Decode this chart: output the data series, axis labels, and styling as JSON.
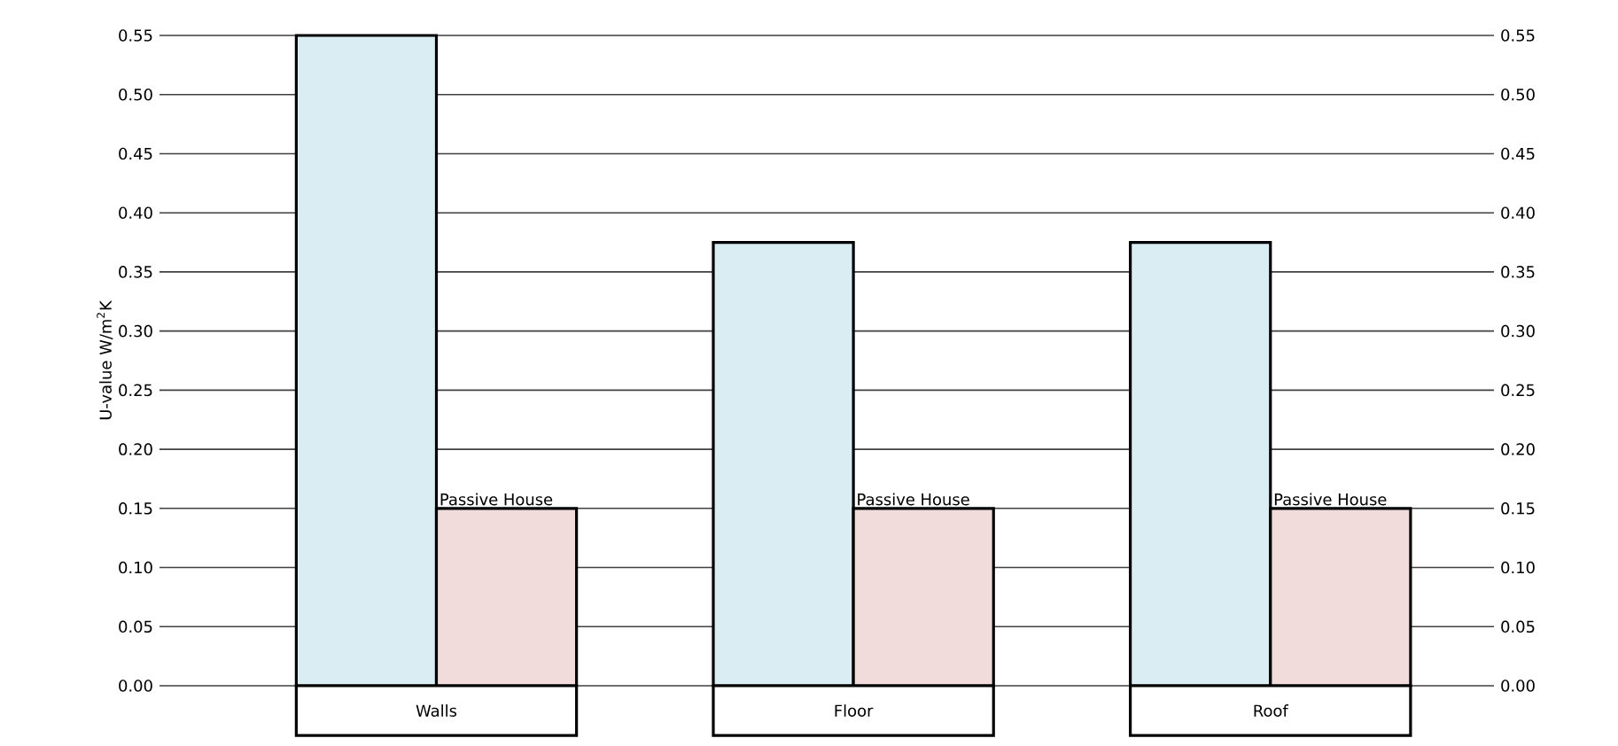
{
  "chart_data": {
    "type": "bar",
    "ylabel": "U-value W/m$^{2}$K",
    "categories": [
      "Walls",
      "Floor",
      "Roof"
    ],
    "series": [
      {
        "color": "#daedf3",
        "values": [
          0.55,
          0.375,
          0.375
        ]
      },
      {
        "name": "Passive House",
        "color": "#f2dcdb",
        "values": [
          0.15,
          0.15,
          0.15
        ]
      }
    ],
    "ylim": [
      0,
      0.55
    ],
    "yticks": [
      {
        "value": 0,
        "label": "0.00"
      },
      0.05,
      {
        "value": 0.1,
        "label": "0.10"
      },
      0.15,
      {
        "value": 0.2,
        "label": "0.20"
      },
      0.25,
      {
        "value": 0.3,
        "label": "0.30"
      },
      0.35,
      {
        "value": 0.4,
        "label": "0.40"
      },
      0.45,
      {
        "value": 0.5,
        "label": "0.50"
      },
      0.55
    ],
    "y2lim": [
      0,
      0.55
    ],
    "y2ticks": [
      {
        "value": 0,
        "label": "0.00"
      },
      0.05,
      {
        "value": 0.1,
        "label": "0.10"
      },
      0.15,
      {
        "value": 0.2,
        "label": "0.20"
      },
      0.25,
      {
        "value": 0.3,
        "label": "0.30"
      },
      0.35,
      {
        "value": 0.4,
        "label": "0.40"
      },
      0.45,
      {
        "value": 0.5,
        "label": "0.50"
      },
      0.55
    ],
    "grid": "y"
  }
}
